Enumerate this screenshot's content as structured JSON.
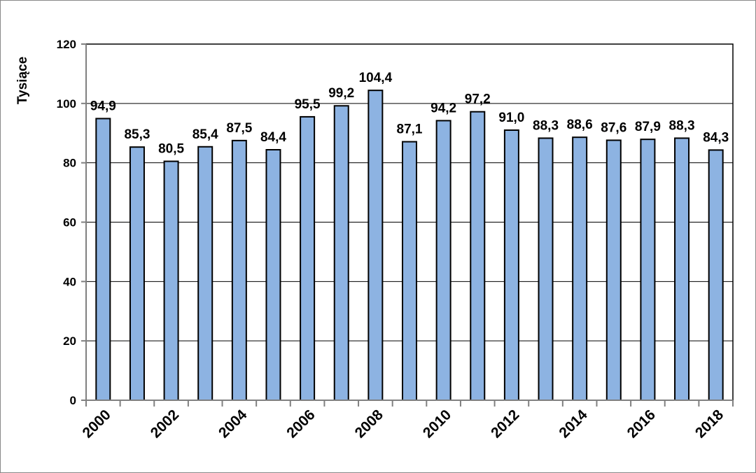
{
  "chart_data": {
    "type": "bar",
    "title": "",
    "xlabel": "",
    "ylabel": "Tysiące",
    "ylim": [
      0,
      120
    ],
    "yticks": [
      0,
      20,
      40,
      60,
      80,
      100,
      120
    ],
    "categories": [
      "2000",
      "2001",
      "2002",
      "2003",
      "2004",
      "2005",
      "2006",
      "2007",
      "2008",
      "2009",
      "2010",
      "2011",
      "2012",
      "2013",
      "2014",
      "2015",
      "2016",
      "2017",
      "2018"
    ],
    "xtick_labels_shown": [
      "2000",
      "2002",
      "2004",
      "2006",
      "2008",
      "2010",
      "2012",
      "2014",
      "2016",
      "2018"
    ],
    "values": [
      94.9,
      85.3,
      80.5,
      85.4,
      87.5,
      84.4,
      95.5,
      99.2,
      104.4,
      87.1,
      94.2,
      97.2,
      91.0,
      88.3,
      88.6,
      87.6,
      87.9,
      88.3,
      84.3
    ],
    "data_labels": [
      "94,9",
      "85,3",
      "80,5",
      "85,4",
      "87,5",
      "84,4",
      "95,5",
      "99,2",
      "104,4",
      "87,1",
      "94,2",
      "97,2",
      "91,0",
      "88,3",
      "88,6",
      "87,6",
      "87,9",
      "88,3",
      "84,3"
    ],
    "grid": true,
    "legend": "none",
    "bar_color": "#8db3e2"
  }
}
